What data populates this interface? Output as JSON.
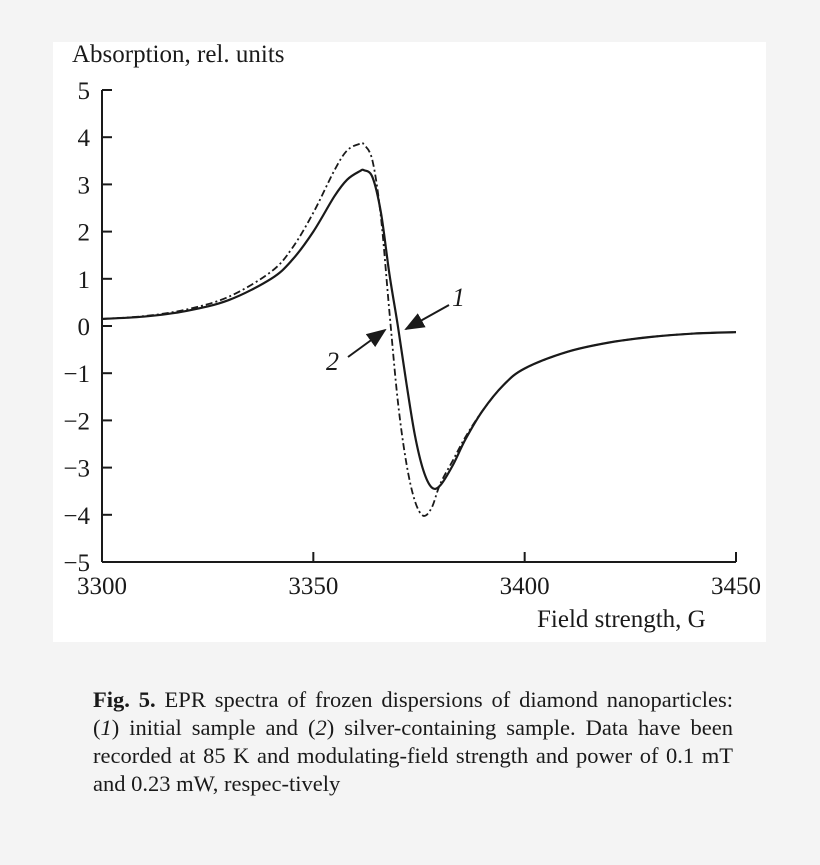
{
  "chart_data": {
    "type": "line",
    "title": "",
    "xlabel": "Field strength, G",
    "ylabel": "Absorption, rel. units",
    "xlim": [
      3300,
      3450
    ],
    "ylim": [
      -5,
      5
    ],
    "xticks": [
      3300,
      3350,
      3400,
      3450
    ],
    "yticks": [
      5,
      4,
      3,
      2,
      1,
      0,
      -1,
      -2,
      -3,
      -4,
      -5
    ],
    "ytick_labels": [
      "5",
      "4",
      "3",
      "2",
      "1",
      "0",
      "−1",
      "−2",
      "−3",
      "−4",
      "−5"
    ],
    "grid": false,
    "legend": "inline labels with arrows",
    "x": [
      3300,
      3310,
      3320,
      3330,
      3340,
      3345,
      3350,
      3355,
      3358,
      3361,
      3362,
      3364,
      3366,
      3368,
      3370,
      3372,
      3374,
      3376,
      3378,
      3380,
      3383,
      3386,
      3390,
      3395,
      3400,
      3410,
      3420,
      3430,
      3440,
      3450
    ],
    "series": [
      {
        "name": "1",
        "label": "initial sample",
        "style": "solid",
        "values": [
          0.15,
          0.2,
          0.32,
          0.55,
          1.0,
          1.4,
          2.0,
          2.75,
          3.1,
          3.28,
          3.3,
          3.15,
          2.4,
          1.1,
          0.0,
          -1.2,
          -2.3,
          -3.05,
          -3.42,
          -3.38,
          -2.95,
          -2.4,
          -1.8,
          -1.25,
          -0.9,
          -0.55,
          -0.35,
          -0.23,
          -0.16,
          -0.13
        ]
      },
      {
        "name": "2",
        "label": "silver-containing sample",
        "style": "dash-dot",
        "values": [
          0.15,
          0.21,
          0.35,
          0.62,
          1.15,
          1.65,
          2.4,
          3.3,
          3.72,
          3.86,
          3.84,
          3.5,
          2.3,
          0.3,
          -1.6,
          -2.9,
          -3.7,
          -4.02,
          -3.85,
          -3.35,
          -2.85,
          -2.35,
          -1.8,
          -1.25,
          -0.9,
          -0.55,
          -0.35,
          -0.23,
          -0.16,
          -0.13
        ]
      }
    ],
    "annotations": [
      {
        "text": "1",
        "points_to_series": "1",
        "near_x": 3370,
        "near_y": 0
      },
      {
        "text": "2",
        "points_to_series": "2",
        "near_x": 3368,
        "near_y": 0
      }
    ]
  },
  "caption": {
    "fig_label": "Fig. 5.",
    "part1": " EPR spectra of frozen dispersions of diamond nanoparticles: (",
    "ref1": "1",
    "part2": ") initial sample and (",
    "ref2": "2",
    "part3": ") silver-containing sample. Data have been recorded at 85 K and modulating-field strength and power of 0.1 mT and 0.23 mW, respec-tively"
  }
}
